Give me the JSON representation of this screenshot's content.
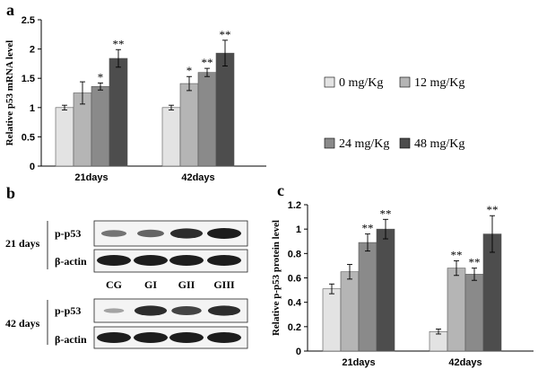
{
  "colors": {
    "series": [
      "#e3e3e3",
      "#b5b5b5",
      "#8a8a8a",
      "#4d4d4d"
    ],
    "axis": "#000000",
    "band_dark": "#111111"
  },
  "panels": {
    "a": "a",
    "b": "b",
    "c": "c"
  },
  "legend": {
    "items": [
      "0 mg/Kg",
      "12 mg/Kg",
      "24 mg/Kg",
      "48 mg/Kg"
    ]
  },
  "chart_data": [
    {
      "id": "a",
      "type": "bar",
      "title": "",
      "xlabel": "",
      "ylabel": "Relative p53 mRNA level",
      "ylim": [
        0,
        2.5
      ],
      "yticks": [
        "0",
        "0.5",
        "1",
        "1.5",
        "2",
        "2.5"
      ],
      "ytick_values": [
        0,
        0.5,
        1,
        1.5,
        2,
        2.5
      ],
      "categories": [
        "21days",
        "42days"
      ],
      "series": [
        {
          "name": "0 mg/Kg",
          "values": [
            1.0,
            1.0
          ],
          "errors": [
            0.04,
            0.04
          ],
          "marks": [
            "",
            ""
          ]
        },
        {
          "name": "12 mg/Kg",
          "values": [
            1.25,
            1.41
          ],
          "errors": [
            0.19,
            0.12
          ],
          "marks": [
            "",
            "*"
          ]
        },
        {
          "name": "24 mg/Kg",
          "values": [
            1.36,
            1.6
          ],
          "errors": [
            0.06,
            0.07
          ],
          "marks": [
            "*",
            "**"
          ]
        },
        {
          "name": "48 mg/Kg",
          "values": [
            1.84,
            1.93
          ],
          "errors": [
            0.15,
            0.22
          ],
          "marks": [
            "**",
            "**"
          ]
        }
      ]
    },
    {
      "id": "c",
      "type": "bar",
      "title": "",
      "xlabel": "",
      "ylabel": "Relative p-p53 protein level",
      "ylim": [
        0,
        1.2
      ],
      "yticks": [
        "0",
        "0.2",
        "0.4",
        "0.6",
        "0.8",
        "1",
        "1.2"
      ],
      "ytick_values": [
        0,
        0.2,
        0.4,
        0.6,
        0.8,
        1.0,
        1.2
      ],
      "categories": [
        "21days",
        "42days"
      ],
      "series": [
        {
          "name": "0 mg/Kg",
          "values": [
            0.51,
            0.16
          ],
          "errors": [
            0.04,
            0.02
          ],
          "marks": [
            "",
            ""
          ]
        },
        {
          "name": "12 mg/Kg",
          "values": [
            0.65,
            0.68
          ],
          "errors": [
            0.06,
            0.06
          ],
          "marks": [
            "",
            "**"
          ]
        },
        {
          "name": "24 mg/Kg",
          "values": [
            0.89,
            0.63
          ],
          "errors": [
            0.07,
            0.05
          ],
          "marks": [
            "**",
            "**"
          ]
        },
        {
          "name": "48 mg/Kg",
          "values": [
            1.0,
            0.96
          ],
          "errors": [
            0.08,
            0.15
          ],
          "marks": [
            "**",
            "**"
          ]
        }
      ]
    }
  ],
  "blots": {
    "groups": [
      {
        "label": "21 days",
        "rows": [
          {
            "label": "p-p53",
            "intensity": [
              0.45,
              0.55,
              0.9,
              1.0
            ]
          },
          {
            "label": "β-actin",
            "intensity": [
              1.0,
              1.0,
              1.0,
              1.0
            ]
          }
        ]
      },
      {
        "label": "42 days",
        "rows": [
          {
            "label": "p-p53",
            "intensity": [
              0.15,
              0.9,
              0.75,
              0.9
            ]
          },
          {
            "label": "β-actin",
            "intensity": [
              1.0,
              1.0,
              1.0,
              1.0
            ]
          }
        ]
      }
    ],
    "lanes": [
      "CG",
      "GI",
      "GII",
      "GIII"
    ]
  }
}
